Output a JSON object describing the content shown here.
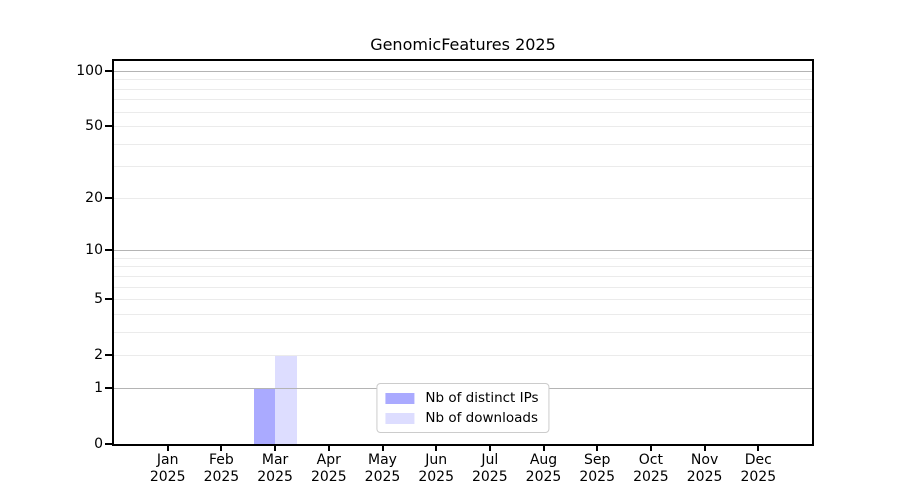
{
  "window": {
    "background": "#ffffff"
  },
  "chart_data": {
    "type": "bar",
    "title": "GenomicFeatures 2025",
    "x": {
      "categories": [
        "Jan",
        "Feb",
        "Mar",
        "Apr",
        "May",
        "Jun",
        "Jul",
        "Aug",
        "Sep",
        "Oct",
        "Nov",
        "Dec"
      ],
      "year": "2025"
    },
    "series": [
      {
        "name": "Nb of distinct IPs",
        "color": "#aaaaff",
        "values": [
          0,
          0,
          1,
          0,
          0,
          0,
          0,
          0,
          0,
          0,
          0,
          0
        ]
      },
      {
        "name": "Nb of downloads",
        "color": "#ddddff",
        "values": [
          0,
          0,
          2,
          0,
          0,
          0,
          0,
          0,
          0,
          0,
          0,
          0
        ]
      }
    ],
    "y_scale": "log1p",
    "ylim": [
      0,
      113
    ],
    "y_ticks": [
      {
        "value": 0,
        "label": "0"
      },
      {
        "value": 1,
        "label": "1"
      },
      {
        "value": 2,
        "label": "2"
      },
      {
        "value": 5,
        "label": "5"
      },
      {
        "value": 10,
        "label": "10"
      },
      {
        "value": 20,
        "label": "20"
      },
      {
        "value": 50,
        "label": "50"
      },
      {
        "value": 100,
        "label": "100"
      }
    ],
    "grid": {
      "major_values": [
        1,
        10,
        100
      ],
      "minor_values": [
        2,
        3,
        4,
        5,
        6,
        7,
        8,
        9,
        20,
        30,
        40,
        50,
        60,
        70,
        80,
        90
      ],
      "major_color": "#b4b4b4",
      "minor_color": "#ebebeb"
    },
    "legend_position": "lower center",
    "axis_color": "#000000",
    "bar_width_fraction": 0.4
  }
}
